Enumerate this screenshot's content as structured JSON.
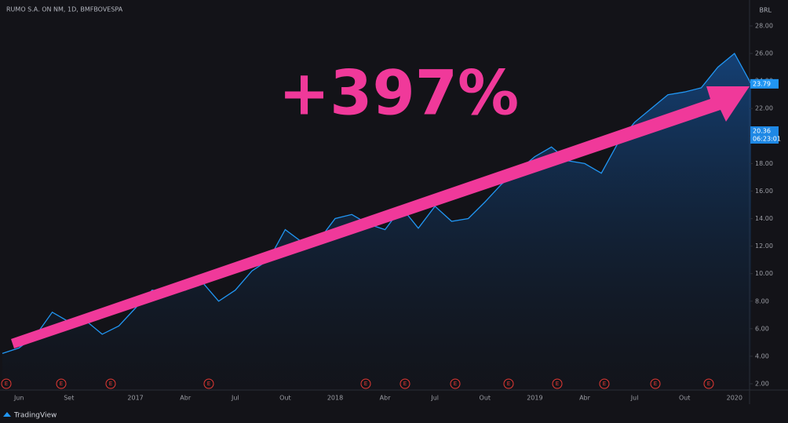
{
  "chart_data": {
    "type": "line",
    "symbol": "RUMO S.A. ON NM, 1D, BMFBOVESPA",
    "currency": "BRL",
    "annotation": "+397%",
    "color": "#2196f3",
    "categories": [
      null,
      "Jun",
      null,
      null,
      "Set",
      null,
      null,
      null,
      "2017",
      null,
      null,
      "Abr",
      null,
      null,
      "Jul",
      null,
      null,
      "Out",
      null,
      null,
      "2018",
      null,
      null,
      "Abr",
      null,
      null,
      "Jul",
      null,
      null,
      "Out",
      null,
      null,
      "2019",
      null,
      null,
      "Abr",
      null,
      null,
      "Jul",
      null,
      null,
      "Out",
      null,
      null,
      "2020",
      null
    ],
    "values": [
      4.2,
      4.6,
      5.5,
      7.2,
      6.5,
      6.6,
      5.6,
      6.2,
      7.5,
      8.8,
      8.6,
      8.8,
      9.4,
      8.0,
      8.8,
      10.2,
      11.0,
      13.2,
      12.3,
      12.4,
      14.0,
      14.3,
      13.6,
      13.2,
      14.8,
      13.3,
      14.9,
      13.8,
      14.0,
      15.2,
      16.5,
      17.5,
      18.5,
      19.2,
      18.2,
      18.0,
      17.3,
      19.5,
      21.0,
      22.0,
      23.0,
      23.2,
      23.5,
      25.0,
      26.0,
      23.79
    ],
    "last_label": "23.79",
    "countdown": {
      "value": 20.36,
      "label": "20.36",
      "time": "06:23:01"
    },
    "ylim": [
      2,
      28.5
    ],
    "yticks": [
      {
        "value": 2,
        "label": "2.00"
      },
      {
        "value": 4,
        "label": "4.00"
      },
      {
        "value": 6,
        "label": "6.00"
      },
      {
        "value": 8,
        "label": "8.00"
      },
      {
        "value": 10,
        "label": "10.00"
      },
      {
        "value": 12,
        "label": "12.00"
      },
      {
        "value": 14,
        "label": "14.00"
      },
      {
        "value": 16,
        "label": "16.00"
      },
      {
        "value": 18,
        "label": "18.00"
      },
      {
        "value": 20,
        "label": "20.00"
      },
      {
        "value": 22,
        "label": "22.00"
      },
      {
        "value": 24,
        "label": "24.00"
      },
      {
        "value": 26,
        "label": "26.00"
      },
      {
        "value": 28,
        "label": "28.00"
      }
    ],
    "events": [
      "E",
      "E",
      "E",
      "E",
      "E",
      "E",
      "E",
      "E",
      "E",
      "E",
      "E",
      "E"
    ],
    "branding": "TradingView"
  }
}
